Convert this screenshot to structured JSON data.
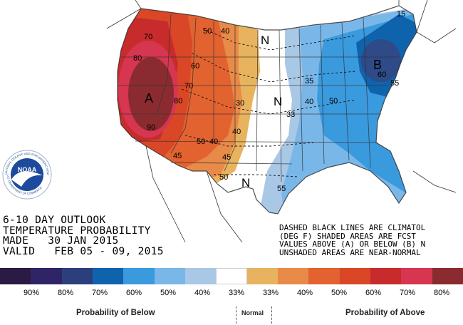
{
  "map": {
    "title_lines": [
      "6-10 DAY OUTLOOK",
      "TEMPERATURE PROBABILITY",
      "MADE   30 JAN 2015",
      "VALID   FEB 05 - 09, 2015"
    ],
    "notes_lines": [
      "DASHED BLACK LINES ARE CLIMATOL",
      "(DEG F) SHADED AREAS ARE FCST",
      "VALUES ABOVE (A) OR BELOW (B) N",
      "UNSHADED AREAS ARE NEAR-NORMAL"
    ],
    "region_labels": {
      "above": "A",
      "below": "B",
      "normal": "N"
    },
    "contour_labels": [
      "70",
      "80",
      "90",
      "80",
      "70",
      "60",
      "50",
      "40",
      "50",
      "40",
      "30",
      "40",
      "45",
      "50",
      "35",
      "40",
      "33",
      "50",
      "45",
      "55",
      "55",
      "60",
      "15"
    ],
    "colors": {
      "below_90": "#1e1947",
      "below_80": "#2b2560",
      "below_70": "#2e4a87",
      "below_60": "#0f63ad",
      "below_50": "#3a9ade",
      "below_40": "#7ab7e9",
      "below_33": "#a9c8e6",
      "normal": "#ffffff",
      "above_33": "#e8b35e",
      "above_40": "#e88a48",
      "above_50": "#e26230",
      "above_60": "#d94726",
      "above_70": "#c72b2b",
      "above_80": "#d63650",
      "above_90": "#8a2c2f"
    }
  },
  "logo": {
    "agency_text": "NATIONAL OCEANIC AND ATMOSPHERIC ADMINISTRATION",
    "dept_text": "U.S. DEPARTMENT OF COMMERCE",
    "acronym": "NOAA"
  },
  "legend": {
    "swatches": [
      "#2a1b45",
      "#2f2566",
      "#2c3f7d",
      "#0f63ad",
      "#3a9ade",
      "#7ab7e9",
      "#a9c8e6",
      "#ffffff",
      "#e8b35e",
      "#e88a48",
      "#e26230",
      "#d94726",
      "#c72b2b",
      "#d63650",
      "#8a2c2f"
    ],
    "percent_labels": [
      "90%",
      "80%",
      "70%",
      "60%",
      "50%",
      "40%",
      "33%",
      "33%",
      "40%",
      "50%",
      "60%",
      "70%",
      "80%"
    ],
    "below_caption": "Probability of Below",
    "normal_caption": "Normal",
    "above_caption": "Probability of Above"
  }
}
